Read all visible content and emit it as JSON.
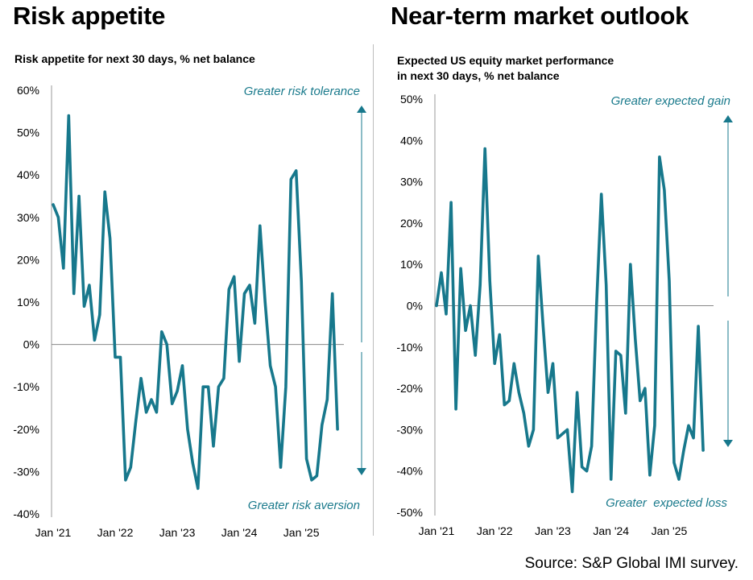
{
  "left": {
    "heading": "Risk appetite",
    "chart_subtitle": "Risk appetite for next 30 days, % net balance"
  },
  "right": {
    "heading": "Near-term market outlook",
    "chart_subtitle_line1": "Expected US equity market performance",
    "chart_subtitle_line2": "in next 30 days, % net balance"
  },
  "source": "Source: S&P Global IMI survey.",
  "colors": {
    "series": "#17788c",
    "zero_line": "#888888",
    "arrow": "#17788c"
  },
  "chart_data": [
    {
      "type": "line",
      "title": "Risk appetite",
      "subtitle": "Risk appetite for next 30 days, % net balance",
      "x_unit": "month",
      "x_start": "Jan 2021",
      "xticks": [
        "Jan '21",
        "Jan '22",
        "Jan '23",
        "Jan '24",
        "Jan '25"
      ],
      "yticks": [
        "-40%",
        "-30%",
        "-20%",
        "-10%",
        "0%",
        "10%",
        "20%",
        "30%",
        "40%",
        "50%",
        "60%"
      ],
      "ylim": [
        -40,
        60
      ],
      "annotations": {
        "top": "Greater risk tolerance",
        "bottom": "Greater risk aversion"
      },
      "series": [
        {
          "values": [
            33,
            30,
            18,
            54,
            12,
            35,
            9,
            14,
            1,
            7,
            36,
            25,
            -3,
            -3,
            -32,
            -29,
            -18,
            -8,
            -16,
            -13,
            -16,
            3,
            0,
            -14,
            -11,
            -5,
            -20,
            -28,
            -34,
            -10,
            -10,
            -24,
            -10,
            -8,
            13,
            16,
            -4,
            12,
            14,
            5,
            28,
            10,
            -5,
            -10,
            -29,
            -10,
            39,
            41,
            15,
            -27,
            -32,
            -31,
            -19,
            -13,
            12,
            -20
          ]
        }
      ]
    },
    {
      "type": "line",
      "title": "Near-term market outlook",
      "subtitle": "Expected US equity market performance in next 30 days, % net balance",
      "x_unit": "month",
      "x_start": "Jan 2021",
      "xticks": [
        "Jan '21",
        "Jan '22",
        "Jan '23",
        "Jan '24",
        "Jan '25"
      ],
      "yticks": [
        "-50%",
        "-40%",
        "-30%",
        "-20%",
        "-10%",
        "0%",
        "10%",
        "20%",
        "30%",
        "40%",
        "50%"
      ],
      "ylim": [
        -50,
        50
      ],
      "annotations": {
        "top": "Greater expected gain",
        "bottom": "Greater  expected loss"
      },
      "series": [
        {
          "values": [
            0,
            8,
            -2,
            25,
            -25,
            9,
            -6,
            0,
            -12,
            5,
            38,
            6,
            -14,
            -7,
            -24,
            -23,
            -14,
            -21,
            -26,
            -34,
            -30,
            12,
            -5,
            -21,
            -14,
            -32,
            -31,
            -30,
            -45,
            -21,
            -39,
            -40,
            -34,
            0,
            27,
            5,
            -42,
            -11,
            -12,
            -26,
            10,
            -8,
            -23,
            -20,
            -41,
            -29,
            36,
            28,
            6,
            -38,
            -42,
            -35,
            -29,
            -32,
            -5,
            -35
          ]
        }
      ]
    }
  ]
}
